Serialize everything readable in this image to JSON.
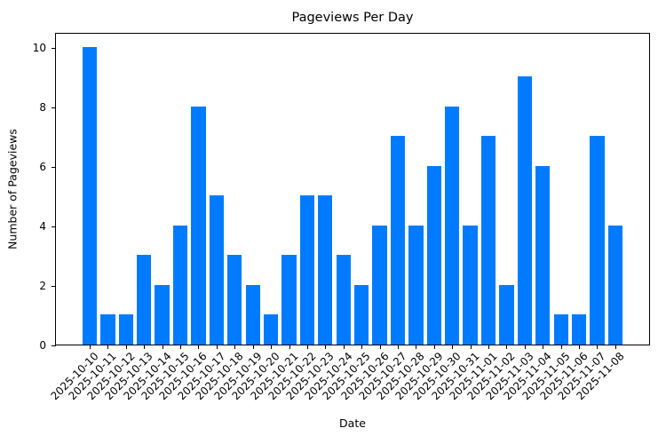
{
  "chart_data": {
    "type": "bar",
    "title": "Pageviews Per Day",
    "xlabel": "Date",
    "ylabel": "Number of Pageviews",
    "ylim": [
      0,
      10.5
    ],
    "yticks": [
      0,
      2,
      4,
      6,
      8,
      10
    ],
    "grid": false,
    "legend": null,
    "bar_color": "#007bff",
    "categories": [
      "2025-10-10",
      "2025-10-11",
      "2025-10-12",
      "2025-10-13",
      "2025-10-14",
      "2025-10-15",
      "2025-10-16",
      "2025-10-17",
      "2025-10-18",
      "2025-10-19",
      "2025-10-20",
      "2025-10-21",
      "2025-10-22",
      "2025-10-23",
      "2025-10-24",
      "2025-10-25",
      "2025-10-26",
      "2025-10-27",
      "2025-10-28",
      "2025-10-29",
      "2025-10-30",
      "2025-10-31",
      "2025-11-01",
      "2025-11-02",
      "2025-11-03",
      "2025-11-04",
      "2025-11-05",
      "2025-11-06",
      "2025-11-07",
      "2025-11-08"
    ],
    "values": [
      10,
      1,
      1,
      3,
      2,
      4,
      8,
      5,
      3,
      2,
      1,
      3,
      5,
      5,
      3,
      2,
      4,
      7,
      4,
      6,
      8,
      4,
      7,
      2,
      9,
      6,
      1,
      1,
      7,
      4
    ]
  }
}
